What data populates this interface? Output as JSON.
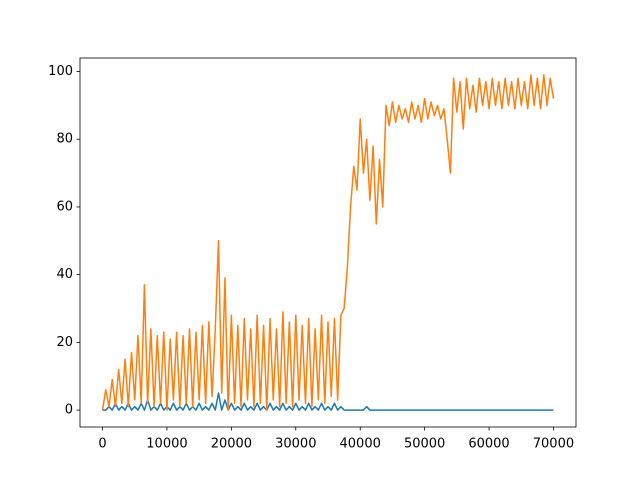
{
  "chart_data": {
    "type": "line",
    "x": [
      0,
      500,
      1000,
      1500,
      2000,
      2500,
      3000,
      3500,
      4000,
      4500,
      5000,
      5500,
      6000,
      6500,
      7000,
      7500,
      8000,
      8500,
      9000,
      9500,
      10000,
      10500,
      11000,
      11500,
      12000,
      12500,
      13000,
      13500,
      14000,
      14500,
      15000,
      15500,
      16000,
      16500,
      17000,
      17500,
      18000,
      18500,
      19000,
      19500,
      20000,
      20500,
      21000,
      21500,
      22000,
      22500,
      23000,
      23500,
      24000,
      24500,
      25000,
      25500,
      26000,
      26500,
      27000,
      27500,
      28000,
      28500,
      29000,
      29500,
      30000,
      30500,
      31000,
      31500,
      32000,
      32500,
      33000,
      33500,
      34000,
      34500,
      35000,
      35500,
      36000,
      36500,
      37000,
      37500,
      38000,
      38500,
      39000,
      39500,
      40000,
      40500,
      41000,
      41500,
      42000,
      42500,
      43000,
      43500,
      44000,
      44500,
      45000,
      45500,
      46000,
      46500,
      47000,
      47500,
      48000,
      48500,
      49000,
      49500,
      50000,
      50500,
      51000,
      51500,
      52000,
      52500,
      53000,
      53500,
      54000,
      54500,
      55000,
      55500,
      56000,
      56500,
      57000,
      57500,
      58000,
      58500,
      59000,
      59500,
      60000,
      60500,
      61000,
      61500,
      62000,
      62500,
      63000,
      63500,
      64000,
      64500,
      65000,
      65500,
      66000,
      66500,
      67000,
      67500,
      68000,
      68500,
      69000,
      69500,
      70000
    ],
    "series": [
      {
        "color": "#1f77b4",
        "values": [
          0,
          0,
          1,
          0,
          2,
          0,
          1,
          0,
          2,
          0,
          1,
          0,
          2,
          0,
          3,
          0,
          1,
          0,
          2,
          0,
          1,
          0,
          2,
          0,
          1,
          0,
          2,
          0,
          1,
          0,
          2,
          0,
          1,
          0,
          2,
          0,
          5,
          0,
          3,
          0,
          2,
          0,
          1,
          0,
          2,
          0,
          1,
          0,
          2,
          0,
          1,
          0,
          2,
          0,
          1,
          0,
          2,
          0,
          1,
          0,
          2,
          0,
          1,
          0,
          2,
          0,
          1,
          0,
          2,
          0,
          1,
          0,
          2,
          0,
          1,
          0,
          0,
          0,
          0,
          0,
          0,
          0,
          1,
          0,
          0,
          0,
          0,
          0,
          0,
          0,
          0,
          0,
          0,
          0,
          0,
          0,
          0,
          0,
          0,
          0,
          0,
          0,
          0,
          0,
          0,
          0,
          0,
          0,
          0,
          0,
          0,
          0,
          0,
          0,
          0,
          0,
          0,
          0,
          0,
          0,
          0,
          0,
          0,
          0,
          0,
          0,
          0,
          0,
          0,
          0,
          0,
          0,
          0,
          0,
          0,
          0,
          0,
          0,
          0,
          0,
          0
        ]
      },
      {
        "color": "#ff7f0e",
        "values": [
          0,
          6,
          1,
          9,
          1,
          12,
          2,
          15,
          1,
          17,
          3,
          22,
          2,
          37,
          2,
          24,
          1,
          22,
          2,
          23,
          0,
          21,
          3,
          23,
          1,
          22,
          2,
          24,
          1,
          23,
          3,
          25,
          2,
          26,
          4,
          24,
          50,
          5,
          39,
          0,
          28,
          2,
          25,
          1,
          27,
          3,
          24,
          1,
          28,
          2,
          25,
          0,
          27,
          3,
          24,
          1,
          29,
          2,
          26,
          1,
          28,
          3,
          25,
          2,
          27,
          1,
          24,
          3,
          28,
          2,
          26,
          4,
          27,
          3,
          28,
          30,
          42,
          60,
          72,
          65,
          86,
          70,
          80,
          62,
          78,
          55,
          74,
          60,
          90,
          84,
          91,
          85,
          90,
          86,
          89,
          85,
          91,
          86,
          90,
          85,
          92,
          86,
          91,
          87,
          90,
          86,
          89,
          80,
          70,
          98,
          88,
          97,
          83,
          98,
          89,
          96,
          88,
          98,
          90,
          97,
          89,
          98,
          90,
          97,
          89,
          98,
          90,
          97,
          89,
          98,
          90,
          97,
          89,
          99,
          90,
          98,
          89,
          99,
          90,
          98,
          92
        ]
      }
    ],
    "xlim": [
      -3500,
      73500
    ],
    "ylim": [
      -5,
      104
    ],
    "xticks": [
      0,
      10000,
      20000,
      30000,
      40000,
      50000,
      60000,
      70000
    ],
    "yticks": [
      0,
      20,
      40,
      60,
      80,
      100
    ],
    "grid": false
  }
}
